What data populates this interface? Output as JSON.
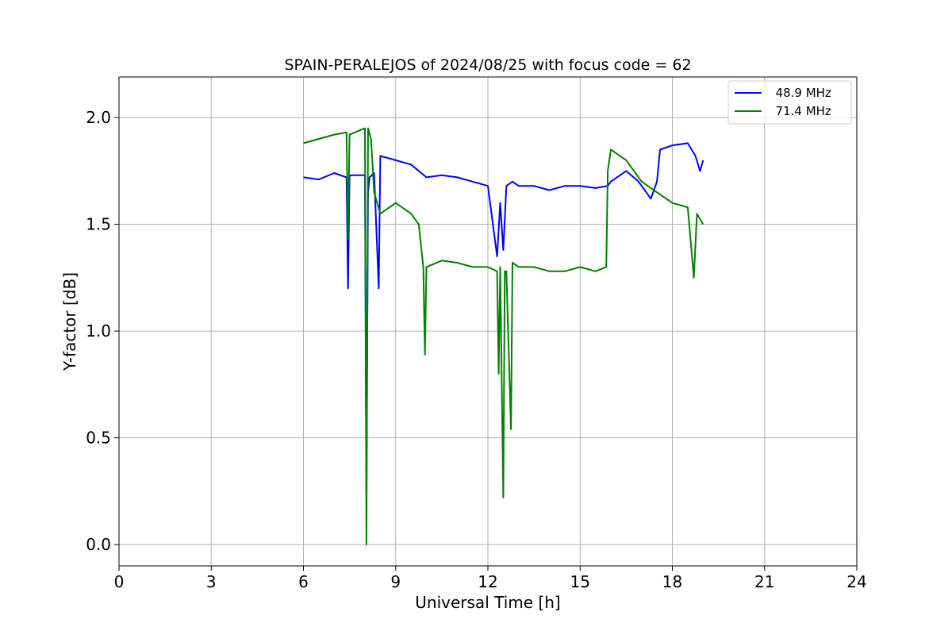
{
  "chart_data": {
    "type": "line",
    "title": "SPAIN-PERALEJOS of 2024/08/25 with focus code = 62",
    "xlabel": "Universal Time [h]",
    "ylabel": "Y-factor [dB]",
    "xlim": [
      0,
      24
    ],
    "ylim": [
      -0.1,
      2.19
    ],
    "xticks": [
      0,
      3,
      6,
      9,
      12,
      15,
      18,
      21,
      24
    ],
    "xtick_labels": [
      "0",
      "3",
      "6",
      "9",
      "12",
      "15",
      "18",
      "21",
      "24"
    ],
    "yticks": [
      0.0,
      0.5,
      1.0,
      1.5,
      2.0
    ],
    "ytick_labels": [
      "0.0",
      "0.5",
      "1.0",
      "1.5",
      "2.0"
    ],
    "grid": true,
    "legend_position": "top-right",
    "series": [
      {
        "name": "  48.9 MHz",
        "color": "#0000ff",
        "x": [
          6.0,
          6.5,
          7.0,
          7.4,
          7.45,
          7.5,
          8.0,
          8.05,
          8.1,
          8.15,
          8.3,
          8.45,
          8.5,
          9.0,
          9.5,
          10.0,
          10.5,
          11.0,
          11.5,
          12.0,
          12.3,
          12.4,
          12.5,
          12.6,
          12.8,
          13.0,
          13.5,
          14.0,
          14.5,
          15.0,
          15.5,
          15.9,
          16.0,
          16.5,
          16.9,
          17.0,
          17.3,
          17.5,
          17.6,
          18.0,
          18.5,
          18.75,
          18.9,
          19.0
        ],
        "y": [
          1.72,
          1.71,
          1.74,
          1.72,
          1.2,
          1.73,
          1.73,
          0.24,
          1.65,
          1.72,
          1.74,
          1.2,
          1.82,
          1.8,
          1.78,
          1.72,
          1.73,
          1.72,
          1.7,
          1.68,
          1.35,
          1.6,
          1.38,
          1.68,
          1.7,
          1.68,
          1.68,
          1.66,
          1.68,
          1.68,
          1.67,
          1.68,
          1.7,
          1.75,
          1.7,
          1.68,
          1.62,
          1.7,
          1.85,
          1.87,
          1.88,
          1.82,
          1.75,
          1.8
        ]
      },
      {
        "name": "  71.4 MHz",
        "color": "#008000",
        "x": [
          6.0,
          6.5,
          7.0,
          7.4,
          7.45,
          7.5,
          8.0,
          8.05,
          8.1,
          8.2,
          8.3,
          8.5,
          9.0,
          9.5,
          9.75,
          9.9,
          9.95,
          10.0,
          10.5,
          11.0,
          11.5,
          12.0,
          12.3,
          12.35,
          12.4,
          12.5,
          12.55,
          12.6,
          12.75,
          12.8,
          13.0,
          13.5,
          14.0,
          14.5,
          15.0,
          15.5,
          15.85,
          15.9,
          16.0,
          16.5,
          17.0,
          17.5,
          18.0,
          18.5,
          18.7,
          18.8,
          19.0
        ],
        "y": [
          1.88,
          1.9,
          1.92,
          1.93,
          1.43,
          1.92,
          1.95,
          0.0,
          1.95,
          1.9,
          1.65,
          1.55,
          1.6,
          1.55,
          1.5,
          1.3,
          0.89,
          1.3,
          1.33,
          1.32,
          1.3,
          1.3,
          1.28,
          0.8,
          1.3,
          0.22,
          1.28,
          1.28,
          0.54,
          1.32,
          1.3,
          1.3,
          1.28,
          1.28,
          1.3,
          1.28,
          1.3,
          1.75,
          1.85,
          1.8,
          1.7,
          1.65,
          1.6,
          1.58,
          1.25,
          1.55,
          1.5
        ]
      }
    ]
  }
}
